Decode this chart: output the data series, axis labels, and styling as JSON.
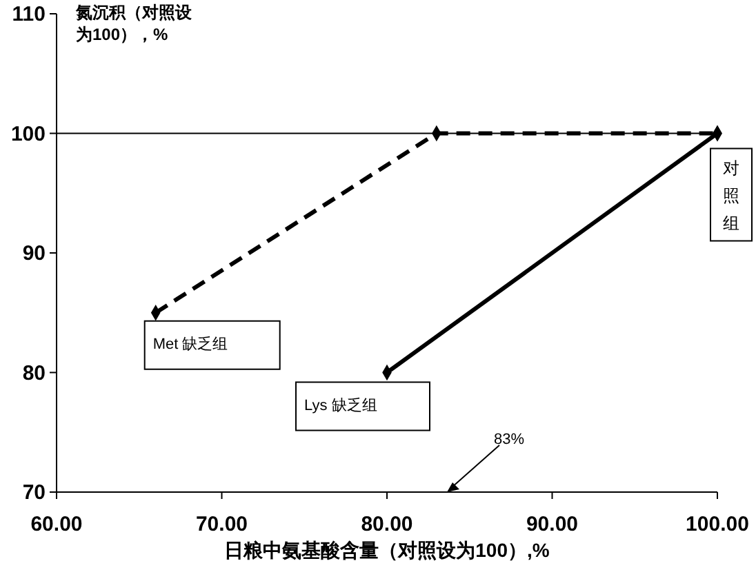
{
  "chart_data": {
    "type": "line",
    "xlabel": "日粮中氨基酸含量（对照设为100）,%",
    "ylabel": "氮沉积（对照设为100），%",
    "xlim": [
      60,
      100
    ],
    "xticks": [
      {
        "value": 60,
        "label": "60.00"
      },
      {
        "value": 70,
        "label": "70.00"
      },
      {
        "value": 80,
        "label": "80.00"
      },
      {
        "value": 90,
        "label": "90.00"
      },
      {
        "value": 100,
        "label": "100.00"
      }
    ],
    "ylim": [
      70,
      110
    ],
    "yticks": [
      70,
      80,
      90,
      100,
      110
    ],
    "grid": false,
    "marker": "diamond",
    "series": [
      {
        "color": "#000000",
        "line_style": "dashed",
        "x": [
          66,
          83,
          100
        ],
        "values": [
          85,
          100,
          100
        ]
      },
      {
        "color": "#000000",
        "line_style": "solid",
        "x": [
          80,
          100
        ],
        "values": [
          80,
          100
        ]
      }
    ],
    "ref_lines": [
      {
        "axis": "y",
        "value": 100,
        "color": "#000000"
      }
    ],
    "annotations": [
      {
        "text": "Met 缺乏组",
        "x": 66,
        "y": 85
      },
      {
        "text": "Lys 缺乏组",
        "x": 80,
        "y": 80
      },
      {
        "text": "对照组",
        "x": 100,
        "y": 100
      },
      "83%"
    ]
  }
}
